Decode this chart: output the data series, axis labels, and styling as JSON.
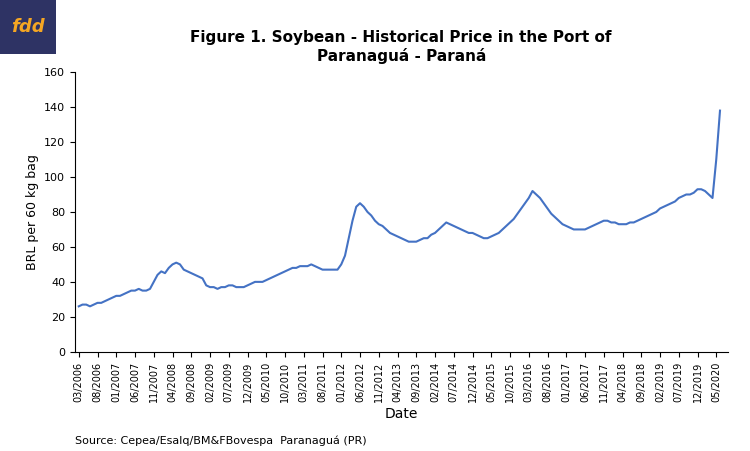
{
  "title": "Figure 1. Soybean - Historical Price in the Port of\nParanaguá - Paraná",
  "xlabel": "Date",
  "ylabel": "BRL per 60 kg bag",
  "source": "Source: Cepea/Esalq/BM&FBovespa  Paranaguá (PR)",
  "line_color": "#4472C4",
  "line_width": 1.5,
  "ylim": [
    0,
    160
  ],
  "yticks": [
    0,
    20,
    40,
    60,
    80,
    100,
    120,
    140,
    160
  ],
  "fdd_bg_color": "#2E3364",
  "fdd_text_color": "#F5A623",
  "xtick_labels": [
    "03/2006",
    "08/2006",
    "01/2007",
    "06/2007",
    "11/2007",
    "04/2008",
    "09/2008",
    "02/2009",
    "07/2009",
    "12/2009",
    "05/2010",
    "10/2010",
    "03/2011",
    "08/2011",
    "01/2012",
    "06/2012",
    "11/2012",
    "04/2013",
    "09/2013",
    "02/2014",
    "07/2014",
    "12/2014",
    "05/2015",
    "10/2015",
    "03/2016",
    "08/2016",
    "01/2017",
    "06/2017",
    "11/2017",
    "04/2018",
    "09/2018",
    "02/2019",
    "07/2019",
    "12/2019",
    "05/2020"
  ],
  "dates": [
    "2006-03",
    "2006-04",
    "2006-05",
    "2006-06",
    "2006-07",
    "2006-08",
    "2006-09",
    "2006-10",
    "2006-11",
    "2006-12",
    "2007-01",
    "2007-02",
    "2007-03",
    "2007-04",
    "2007-05",
    "2007-06",
    "2007-07",
    "2007-08",
    "2007-09",
    "2007-10",
    "2007-11",
    "2007-12",
    "2008-01",
    "2008-02",
    "2008-03",
    "2008-04",
    "2008-05",
    "2008-06",
    "2008-07",
    "2008-08",
    "2008-09",
    "2008-10",
    "2008-11",
    "2008-12",
    "2009-01",
    "2009-02",
    "2009-03",
    "2009-04",
    "2009-05",
    "2009-06",
    "2009-07",
    "2009-08",
    "2009-09",
    "2009-10",
    "2009-11",
    "2009-12",
    "2010-01",
    "2010-02",
    "2010-03",
    "2010-04",
    "2010-05",
    "2010-06",
    "2010-07",
    "2010-08",
    "2010-09",
    "2010-10",
    "2010-11",
    "2010-12",
    "2011-01",
    "2011-02",
    "2011-03",
    "2011-04",
    "2011-05",
    "2011-06",
    "2011-07",
    "2011-08",
    "2011-09",
    "2011-10",
    "2011-11",
    "2011-12",
    "2012-01",
    "2012-02",
    "2012-03",
    "2012-04",
    "2012-05",
    "2012-06",
    "2012-07",
    "2012-08",
    "2012-09",
    "2012-10",
    "2012-11",
    "2012-12",
    "2013-01",
    "2013-02",
    "2013-03",
    "2013-04",
    "2013-05",
    "2013-06",
    "2013-07",
    "2013-08",
    "2013-09",
    "2013-10",
    "2013-11",
    "2013-12",
    "2014-01",
    "2014-02",
    "2014-03",
    "2014-04",
    "2014-05",
    "2014-06",
    "2014-07",
    "2014-08",
    "2014-09",
    "2014-10",
    "2014-11",
    "2014-12",
    "2015-01",
    "2015-02",
    "2015-03",
    "2015-04",
    "2015-05",
    "2015-06",
    "2015-07",
    "2015-08",
    "2015-09",
    "2015-10",
    "2015-11",
    "2015-12",
    "2016-01",
    "2016-02",
    "2016-03",
    "2016-04",
    "2016-05",
    "2016-06",
    "2016-07",
    "2016-08",
    "2016-09",
    "2016-10",
    "2016-11",
    "2016-12",
    "2017-01",
    "2017-02",
    "2017-03",
    "2017-04",
    "2017-05",
    "2017-06",
    "2017-07",
    "2017-08",
    "2017-09",
    "2017-10",
    "2017-11",
    "2017-12",
    "2018-01",
    "2018-02",
    "2018-03",
    "2018-04",
    "2018-05",
    "2018-06",
    "2018-07",
    "2018-08",
    "2018-09",
    "2018-10",
    "2018-11",
    "2018-12",
    "2019-01",
    "2019-02",
    "2019-03",
    "2019-04",
    "2019-05",
    "2019-06",
    "2019-07",
    "2019-08",
    "2019-09",
    "2019-10",
    "2019-11",
    "2019-12",
    "2020-01",
    "2020-02",
    "2020-03",
    "2020-04",
    "2020-05",
    "2020-06"
  ],
  "values": [
    26,
    27,
    27,
    26,
    27,
    28,
    28,
    29,
    30,
    31,
    32,
    32,
    33,
    34,
    35,
    35,
    36,
    35,
    35,
    36,
    40,
    44,
    46,
    45,
    48,
    50,
    51,
    50,
    47,
    46,
    45,
    44,
    43,
    42,
    38,
    37,
    37,
    36,
    37,
    37,
    38,
    38,
    37,
    37,
    37,
    38,
    39,
    40,
    40,
    40,
    41,
    42,
    43,
    44,
    45,
    46,
    47,
    48,
    48,
    49,
    49,
    49,
    50,
    49,
    48,
    47,
    47,
    47,
    47,
    47,
    50,
    55,
    65,
    75,
    83,
    85,
    83,
    80,
    78,
    75,
    73,
    72,
    70,
    68,
    67,
    66,
    65,
    64,
    63,
    63,
    63,
    64,
    65,
    65,
    67,
    68,
    70,
    72,
    74,
    73,
    72,
    71,
    70,
    69,
    68,
    68,
    67,
    66,
    65,
    65,
    66,
    67,
    68,
    70,
    72,
    74,
    76,
    79,
    82,
    85,
    88,
    92,
    90,
    88,
    85,
    82,
    79,
    77,
    75,
    73,
    72,
    71,
    70,
    70,
    70,
    70,
    71,
    72,
    73,
    74,
    75,
    75,
    74,
    74,
    73,
    73,
    73,
    74,
    74,
    75,
    76,
    77,
    78,
    79,
    80,
    82,
    83,
    84,
    85,
    86,
    88,
    89,
    90,
    90,
    91,
    93,
    93,
    92,
    90,
    88,
    110,
    138
  ]
}
